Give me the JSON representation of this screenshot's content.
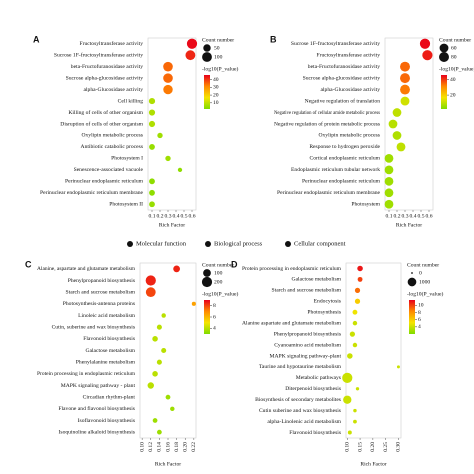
{
  "chart_data": [
    {
      "type": "bubble",
      "panel_label": "A",
      "categories": [
        "Fructosyltransferase activity",
        "Sucrose 1F-fructosyltransferase activity",
        "beta-Fructofuranosidase activity",
        "Sucrose alpha-glucosidase activity",
        "alpha-Glucosidase activity",
        "Cell killing",
        "Killing of cells of other organism",
        "Disruption of cells of other organism",
        "Oxylipin metabolic process",
        "Antibiotic catabolic process",
        "Photosystem I",
        "Senescence-associated vacuole",
        "Perinuclear endoplasmic reticulum",
        "Perinuclear endoplasmic reticulum membrane",
        "Photosystem II"
      ],
      "category_colors": [
        "#111111",
        "#111111",
        "#111111",
        "#111111",
        "#111111",
        "#1f4fbf",
        "#1f4fbf",
        "#1f4fbf",
        "#1f4fbf",
        "#1f4fbf",
        "#c8102e",
        "#c8102e",
        "#c8102e",
        "#c8102e",
        "#c8102e"
      ],
      "x": [
        0.6,
        0.58,
        0.3,
        0.3,
        0.3,
        0.1,
        0.1,
        0.1,
        0.2,
        0.1,
        0.3,
        0.45,
        0.1,
        0.1,
        0.1
      ],
      "size": [
        110,
        100,
        95,
        95,
        90,
        30,
        30,
        30,
        20,
        25,
        20,
        10,
        25,
        25,
        25
      ],
      "color_value": [
        45,
        42,
        35,
        35,
        33,
        8,
        8,
        8,
        6,
        5,
        6,
        4,
        4,
        4,
        5
      ],
      "xlim": [
        0.05,
        0.65
      ],
      "xticks": [
        0.1,
        0.2,
        0.3,
        0.4,
        0.5,
        0.6
      ],
      "x_label": "Rich Factor",
      "size_legend_title": "Count number",
      "size_ticks": [
        50,
        100
      ],
      "color_legend_title": "-log10(P_value)",
      "color_lim": [
        2,
        46
      ],
      "color_ticks": [
        10,
        20,
        30,
        40
      ],
      "colormap": [
        "#7fdc00",
        "#f5e400",
        "#ff8a00",
        "#e8001b"
      ]
    },
    {
      "type": "bubble",
      "panel_label": "B",
      "categories": [
        "Sucrose 1F-fructosyltransferase activity",
        "Fructosyltransferase activity",
        "beta-Fructofuranosidase activity",
        "Sucrose alpha-glucosidase activity",
        "alpha-Glucosidase activity",
        "Negative regulation of translation",
        "Negative regulation of cellular amide metabolic process",
        "Negative regulation of protein metabolic process",
        "Oxylipin metabolic process",
        "Response to hydrogen peroxide",
        "Cortical endoplasmic reticulum",
        "Endoplasmic reticulum tubular network",
        "Perinuclear endoplasmic reticulum",
        "Perinuclear endoplasmic reticulum membrane",
        "Photosystem"
      ],
      "category_colors": [
        "#111111",
        "#111111",
        "#111111",
        "#111111",
        "#111111",
        "#1f4fbf",
        "#1f4fbf",
        "#1f4fbf",
        "#1f4fbf",
        "#1f4fbf",
        "#c8102e",
        "#c8102e",
        "#c8102e",
        "#c8102e",
        "#c8102e"
      ],
      "x": [
        0.55,
        0.58,
        0.3,
        0.3,
        0.3,
        0.3,
        0.2,
        0.15,
        0.2,
        0.25,
        0.1,
        0.1,
        0.1,
        0.1,
        0.1
      ],
      "size": [
        85,
        85,
        80,
        80,
        78,
        60,
        58,
        58,
        58,
        60,
        58,
        58,
        58,
        58,
        58
      ],
      "color_value": [
        45,
        43,
        35,
        35,
        33,
        12,
        10,
        9,
        8,
        10,
        6,
        6,
        6,
        6,
        6
      ],
      "xlim": [
        0.05,
        0.65
      ],
      "xticks": [
        0.1,
        0.2,
        0.3,
        0.4,
        0.5,
        0.6
      ],
      "x_label": "Rich Factor",
      "size_legend_title": "Count number",
      "size_ticks": [
        60,
        80
      ],
      "color_legend_title": "-log10(P_value)",
      "color_lim": [
        2,
        46
      ],
      "color_ticks": [
        20,
        40
      ],
      "colormap": [
        "#7fdc00",
        "#f5e400",
        "#ff8a00",
        "#e8001b"
      ]
    },
    {
      "type": "bubble",
      "panel_label": "C",
      "categories": [
        "Alanine, aspartate and glutamate metabolism",
        "Phenylpropanoid biosynthesis",
        "Starch and sucrose metabolism",
        "Photosynthesis-antenna proteins",
        "Linoleic acid metabolism",
        "Cutin, suberine and wax biosynthesis",
        "Flavonoid biosynthesis",
        "Galactose metabolism",
        "Phenylalanine metabolism",
        "Protein processing in endoplasmic reticulum",
        "MAPK signaling pathway - plant",
        "Circadian rhythm-plant",
        "Flavone and flavonol biosynthesis",
        "Isoflavonoid biosynthesis",
        "Isoquinoline alkaloid biosynthesis"
      ],
      "x": [
        0.18,
        0.12,
        0.12,
        0.22,
        0.15,
        0.14,
        0.13,
        0.15,
        0.14,
        0.13,
        0.12,
        0.16,
        0.17,
        0.13,
        0.14
      ],
      "size": [
        70,
        200,
        180,
        15,
        20,
        30,
        40,
        30,
        30,
        40,
        60,
        25,
        20,
        25,
        25
      ],
      "color_value": [
        8.5,
        8.5,
        8,
        6.5,
        4,
        4,
        4,
        4,
        4,
        4,
        4,
        3.5,
        3.5,
        3.5,
        3.5
      ],
      "xlim": [
        0.095,
        0.225
      ],
      "xticks": [
        {
          "value": 0.1,
          "label": "0.10"
        },
        {
          "value": 0.12,
          "label": "0.12"
        },
        {
          "value": 0.14,
          "label": "0.14"
        },
        {
          "value": 0.16,
          "label": "0.16"
        },
        {
          "value": 0.18,
          "label": "0.18"
        },
        {
          "value": 0.2,
          "label": "0.20"
        },
        {
          "value": 0.22,
          "label": "0.22"
        }
      ],
      "x_label": "Rich Factor",
      "size_legend_title": "Count number",
      "size_ticks": [
        100,
        200
      ],
      "color_legend_title": "-log10(P_value)",
      "color_lim": [
        3,
        9
      ],
      "color_ticks": [
        4,
        6,
        8
      ],
      "colormap": [
        "#7fdc00",
        "#f5e400",
        "#ff8a00",
        "#e8001b"
      ]
    },
    {
      "type": "bubble",
      "panel_label": "D",
      "categories": [
        "Protein processing in endoplasmic reticulum",
        "Galactose metabolism",
        "Starch and sucrose metabolism",
        "Endocytosis",
        "Photosynthesis",
        "Alanine aspartate and glutamate metabolism",
        "Phenylpropanoid biosynthesis",
        "Cyanoamino acid metabolism",
        "MAPK signaling pathway-plant",
        "Taurine and hypotaurine metabolism",
        "Metabolic pathways",
        "Diterpenoid biosynthesis",
        "Biosynthesis of secondary metabolites",
        "Cutin suberine and wax biosynthesis",
        "alpha-Linolenic acid metabolism",
        "Flavonoid biosynthesis"
      ],
      "x": [
        0.15,
        0.15,
        0.14,
        0.14,
        0.13,
        0.13,
        0.12,
        0.13,
        0.11,
        0.3,
        0.1,
        0.14,
        0.1,
        0.13,
        0.13,
        0.11
      ],
      "size": [
        300,
        200,
        250,
        250,
        200,
        150,
        250,
        150,
        300,
        30,
        1500,
        50,
        900,
        60,
        80,
        100
      ],
      "color_value": [
        11,
        10,
        9,
        6,
        5,
        4,
        4,
        4,
        4,
        4,
        4,
        4,
        4,
        4,
        4,
        4
      ],
      "xlim": [
        0.095,
        0.31
      ],
      "xticks": [
        {
          "value": 0.1,
          "label": "0.10"
        },
        {
          "value": 0.15,
          "label": "0.15"
        },
        {
          "value": 0.2,
          "label": "0.20"
        },
        {
          "value": 0.25,
          "label": "0.25"
        },
        {
          "value": 0.3,
          "label": "0.30"
        }
      ],
      "x_label": "Rich Factor",
      "size_legend_title": "Count number",
      "size_ticks": [
        0,
        1000
      ],
      "color_legend_title": "-log10(P_value)",
      "color_lim": [
        2,
        11.5
      ],
      "color_ticks": [
        4,
        6,
        8,
        10
      ],
      "colormap": [
        "#7fdc00",
        "#f5e400",
        "#ff8a00",
        "#e8001b"
      ]
    }
  ],
  "legend": [
    {
      "name": "Molecular function",
      "color": "#111111"
    },
    {
      "name": "Biological process",
      "color": "#1f4fbf"
    },
    {
      "name": "Cellular component",
      "color": "#c8102e"
    }
  ]
}
